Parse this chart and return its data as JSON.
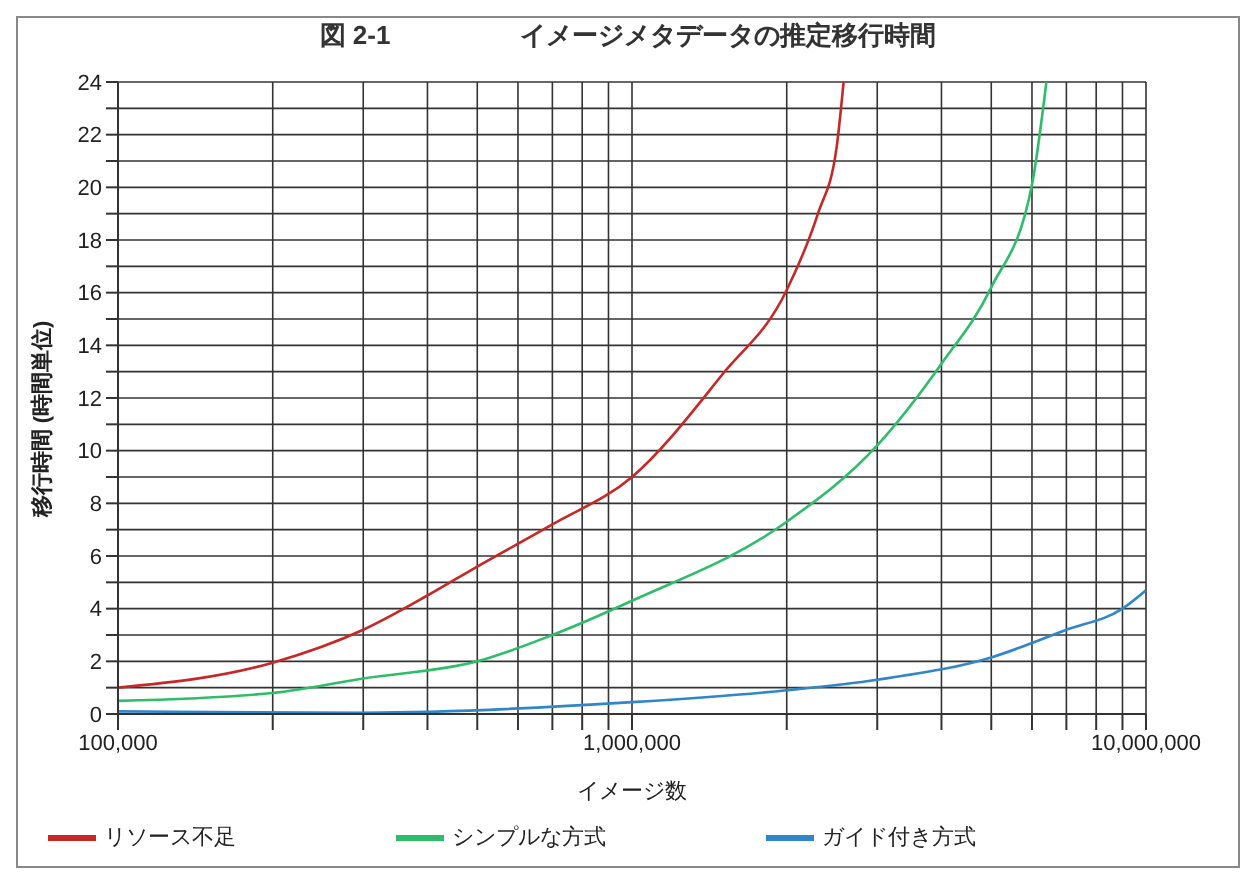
{
  "chart_data": {
    "type": "line",
    "title": "図 2-1　　　　　イメージメタデータの推定移行時間",
    "xlabel": "イメージ数",
    "ylabel": "移行時間 (時間単位)",
    "log": "x",
    "grid": true,
    "legend": "bottom",
    "marker": "none",
    "line_style": "solid",
    "xlim": [
      100000,
      10000000
    ],
    "xticks": [
      {
        "value": 100000,
        "label": "100,000"
      },
      {
        "value": 200000,
        "label": null
      },
      {
        "value": 300000,
        "label": null
      },
      {
        "value": 400000,
        "label": null
      },
      {
        "value": 500000,
        "label": null
      },
      {
        "value": 600000,
        "label": null
      },
      {
        "value": 700000,
        "label": null
      },
      {
        "value": 800000,
        "label": null
      },
      {
        "value": 900000,
        "label": null
      },
      {
        "value": 1000000,
        "label": "1,000,000"
      },
      {
        "value": 2000000,
        "label": null
      },
      {
        "value": 3000000,
        "label": null
      },
      {
        "value": 4000000,
        "label": null
      },
      {
        "value": 5000000,
        "label": null
      },
      {
        "value": 6000000,
        "label": null
      },
      {
        "value": 7000000,
        "label": null
      },
      {
        "value": 8000000,
        "label": null
      },
      {
        "value": 9000000,
        "label": null
      },
      {
        "value": 10000000,
        "label": "10,000,000"
      }
    ],
    "ylim": [
      0,
      24
    ],
    "yticks": [
      0,
      {
        "value": 1,
        "label": null
      },
      2,
      {
        "value": 3,
        "label": null
      },
      4,
      {
        "value": 5,
        "label": null
      },
      6,
      {
        "value": 7,
        "label": null
      },
      8,
      {
        "value": 9,
        "label": null
      },
      10,
      {
        "value": 11,
        "label": null
      },
      12,
      {
        "value": 13,
        "label": null
      },
      14,
      {
        "value": 15,
        "label": null
      },
      16,
      {
        "value": 17,
        "label": null
      },
      18,
      {
        "value": 19,
        "label": null
      },
      20,
      {
        "value": 21,
        "label": null
      },
      22,
      {
        "value": 23,
        "label": null
      },
      24
    ],
    "series": [
      {
        "name": "リソース不足",
        "color": "#c62828",
        "x": [
          100000,
          200000,
          300000,
          400000,
          500000,
          700000,
          1000000,
          1500000,
          2000000,
          2300000,
          2500000,
          2580000
        ],
        "values": [
          1,
          1.95,
          3.2,
          4.5,
          5.6,
          7.2,
          9,
          12.9,
          16.1,
          19,
          21.5,
          24
        ]
      },
      {
        "name": "シンプルな方式",
        "color": "#2ebd6b",
        "x": [
          100000,
          200000,
          300000,
          500000,
          700000,
          1000000,
          2000000,
          3000000,
          4000000,
          5000000,
          6000000,
          6400000
        ],
        "values": [
          0.5,
          0.8,
          1.35,
          2,
          3,
          4.3,
          7.3,
          10.2,
          13.3,
          16.2,
          20.1,
          24
        ]
      },
      {
        "name": "ガイド付き方式",
        "color": "#2f86c9",
        "x": [
          100000,
          300000,
          1000000,
          2000000,
          3000000,
          5000000,
          7000000,
          9000000,
          10000000
        ],
        "values": [
          0.1,
          0.05,
          0.45,
          0.9,
          1.3,
          2.15,
          3.2,
          4,
          4.7
        ]
      }
    ]
  }
}
